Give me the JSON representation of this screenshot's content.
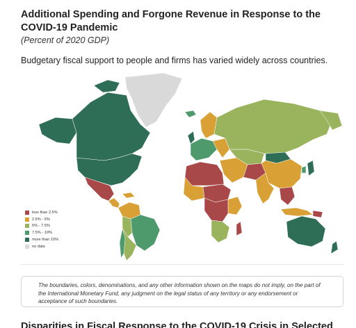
{
  "header": {
    "title": "Additional Spending and Forgone Revenue in Response to the COVID-19 Pandemic",
    "subtitle": "(Percent of 2020 GDP)",
    "description": "Budgetary fiscal support to people and firms has varied widely across countries."
  },
  "map": {
    "legend": [
      {
        "label": "less than 2.5%",
        "color": "#a84848"
      },
      {
        "label": "2.5% - 5%",
        "color": "#d8a035"
      },
      {
        "label": "5% - 7.5%",
        "color": "#9ab45e"
      },
      {
        "label": "7.5% - 10%",
        "color": "#4e9a6c"
      },
      {
        "label": "more than 10%",
        "color": "#2f6e56"
      },
      {
        "label": "no data",
        "color": "#d9d9d9"
      }
    ]
  },
  "disclaimer": "The boundaries, colors, denominations, and any other information shown on the maps do not imply, on the part of the International Monetary Fund, any judgment on the legal status of any territory or any endorsement or acceptance of such boundaries.",
  "next_section": {
    "heading": "Disparities in Fiscal Response to the COVID-19 Crisis in Selected"
  }
}
